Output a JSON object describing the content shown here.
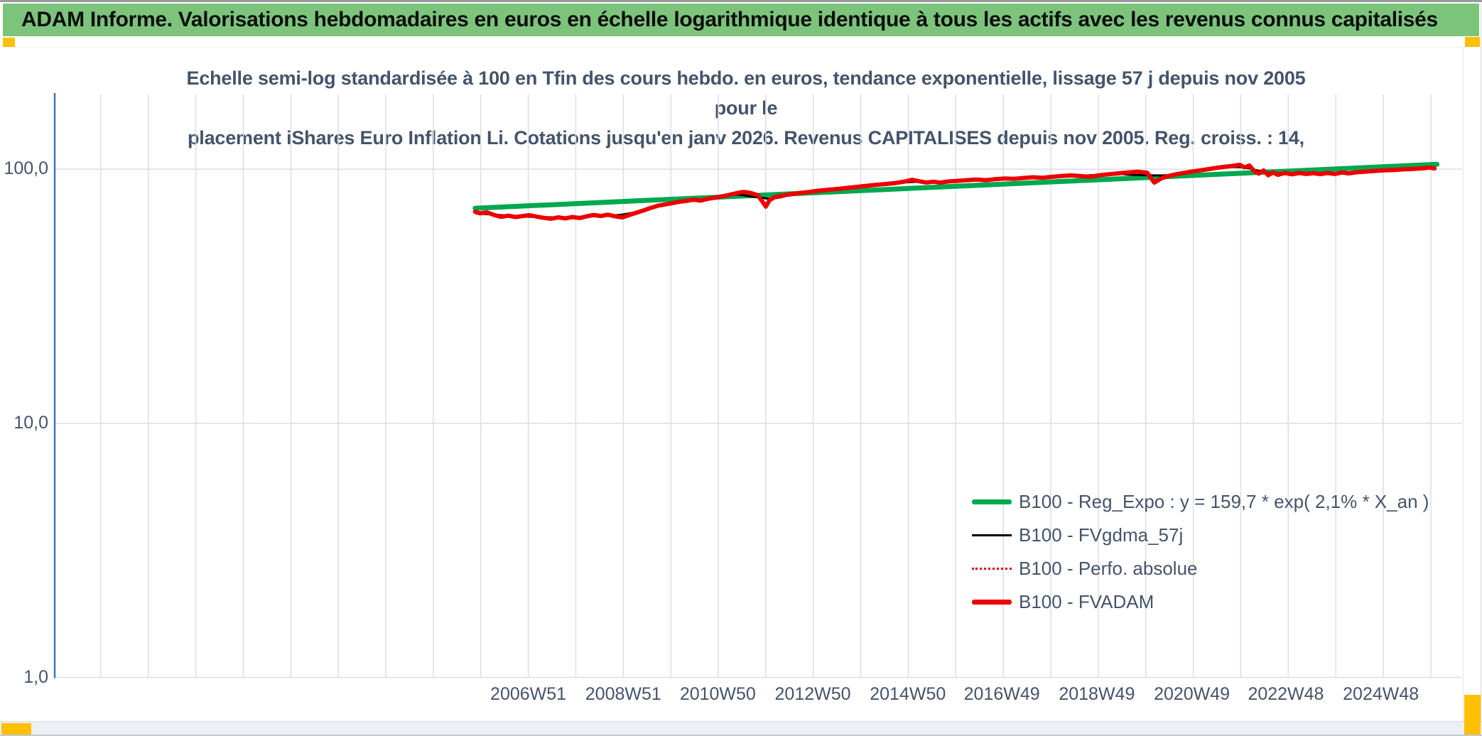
{
  "header": {
    "title": "ADAM Informe. Valorisations hebdomadaires en euros en échelle logarithmique identique à tous les actifs avec les revenus connus capitalisés"
  },
  "chart": {
    "title_line1": "Echelle semi-log standardisée à 100 en Tfin des cours hebdo. en euros, tendance exponentielle, lissage 57 j depuis nov 2005 pour le",
    "title_line2": "placement iShares Euro Inflation Li. Cotations jusqu'en janv 2026. Revenus CAPITALISES depuis nov 2005. Reg. croiss. : 14,"
  },
  "colors": {
    "header_green": "#7CC47C",
    "accent_orange": "#FFC003",
    "title_navy": "#44546A",
    "reg_expo_green": "#00A84F",
    "fvadam_red": "#EC0000",
    "fvgdma_black": "#000000",
    "axis_blue": "#4472C4",
    "gridline": "#DADEE4"
  },
  "chart_data": {
    "type": "line",
    "title": "Echelle semi-log standardisée à 100 en Tfin des cours hebdo. en euros, tendance exponentielle, lissage 57 j depuis nov 2005 pour le placement iShares Euro Inflation Li. Cotations jusqu'en janv 2026. Revenus CAPITALISES depuis nov 2005. Reg. croiss. : 14,",
    "x_axis": {
      "min_year": 1997.0,
      "max_year": 2026.63,
      "grid_start_year": 1997.97,
      "grid_step": 1,
      "grid_count": 29,
      "ticks": [
        {
          "label": "2006W51",
          "year": 2006.97
        },
        {
          "label": "2008W51",
          "year": 2008.97
        },
        {
          "label": "2010W50",
          "year": 2010.96
        },
        {
          "label": "2012W50",
          "year": 2012.96
        },
        {
          "label": "2014W50",
          "year": 2014.96
        },
        {
          "label": "2016W49",
          "year": 2016.94
        },
        {
          "label": "2018W49",
          "year": 2018.94
        },
        {
          "label": "2020W49",
          "year": 2020.94
        },
        {
          "label": "2022W48",
          "year": 2022.92
        },
        {
          "label": "2024W48",
          "year": 2024.92
        }
      ]
    },
    "y_axis": {
      "scale": "log",
      "min": 1,
      "max": 196.7,
      "ticks": [
        {
          "value": 100,
          "label": "100,0"
        },
        {
          "value": 10,
          "label": "10,0"
        },
        {
          "value": 1,
          "label": "1,0"
        }
      ]
    },
    "legend_position": "inside-bottom-right",
    "series": [
      {
        "name": "B100 - Reg_Expo : y = 159,7 * exp( 2,1% *  X_an )",
        "color": "#00A84F",
        "style": "solid-thick",
        "points": [
          [
            2005.85,
            70.2
          ],
          [
            2026.1,
            104.5
          ]
        ]
      },
      {
        "name": "B100 - FVgdma_57j",
        "color": "#000000",
        "style": "solid-thin",
        "smooth_of": "B100 - FVADAM",
        "smooth_window": 7
      },
      {
        "name": "B100 - Perfo. absolue",
        "color": "#E00000",
        "style": "dotted",
        "points_same_as": "B100 - FVADAM"
      },
      {
        "name": "B100 - FVADAM",
        "color": "#EC0000",
        "style": "solid-thick",
        "points": [
          [
            2005.85,
            68.0
          ],
          [
            2005.95,
            67.0
          ],
          [
            2006.1,
            67.6
          ],
          [
            2006.25,
            66.0
          ],
          [
            2006.4,
            64.9
          ],
          [
            2006.55,
            65.6
          ],
          [
            2006.7,
            64.8
          ],
          [
            2006.85,
            65.4
          ],
          [
            2007.0,
            65.9
          ],
          [
            2007.15,
            65.0
          ],
          [
            2007.3,
            64.3
          ],
          [
            2007.45,
            63.8
          ],
          [
            2007.6,
            64.6
          ],
          [
            2007.75,
            64.0
          ],
          [
            2007.9,
            64.8
          ],
          [
            2008.05,
            64.2
          ],
          [
            2008.2,
            65.2
          ],
          [
            2008.35,
            66.0
          ],
          [
            2008.5,
            65.4
          ],
          [
            2008.65,
            66.2
          ],
          [
            2008.8,
            65.2
          ],
          [
            2008.95,
            64.6
          ],
          [
            2009.1,
            66.0
          ],
          [
            2009.25,
            67.4
          ],
          [
            2009.4,
            68.8
          ],
          [
            2009.55,
            70.4
          ],
          [
            2009.7,
            71.8
          ],
          [
            2009.85,
            72.6
          ],
          [
            2010.0,
            73.4
          ],
          [
            2010.15,
            74.4
          ],
          [
            2010.3,
            75.0
          ],
          [
            2010.45,
            75.8
          ],
          [
            2010.6,
            75.2
          ],
          [
            2010.75,
            76.4
          ],
          [
            2010.9,
            77.2
          ],
          [
            2011.05,
            78.2
          ],
          [
            2011.2,
            79.2
          ],
          [
            2011.35,
            80.4
          ],
          [
            2011.5,
            81.4
          ],
          [
            2011.65,
            80.6
          ],
          [
            2011.8,
            79.0
          ],
          [
            2011.9,
            74.5
          ],
          [
            2011.97,
            71.2
          ],
          [
            2012.05,
            75.5
          ],
          [
            2012.15,
            77.5
          ],
          [
            2012.3,
            78.6
          ],
          [
            2012.45,
            79.4
          ],
          [
            2012.6,
            80.2
          ],
          [
            2012.75,
            80.8
          ],
          [
            2012.9,
            81.4
          ],
          [
            2013.1,
            82.4
          ],
          [
            2013.3,
            83.0
          ],
          [
            2013.5,
            83.6
          ],
          [
            2013.7,
            84.4
          ],
          [
            2013.9,
            85.2
          ],
          [
            2014.1,
            86.0
          ],
          [
            2014.3,
            86.8
          ],
          [
            2014.5,
            87.4
          ],
          [
            2014.7,
            88.2
          ],
          [
            2014.9,
            89.4
          ],
          [
            2015.05,
            90.8
          ],
          [
            2015.2,
            89.6
          ],
          [
            2015.35,
            88.6
          ],
          [
            2015.5,
            89.2
          ],
          [
            2015.65,
            88.5
          ],
          [
            2015.8,
            89.4
          ],
          [
            2016.0,
            89.9
          ],
          [
            2016.2,
            90.5
          ],
          [
            2016.4,
            91.0
          ],
          [
            2016.6,
            90.5
          ],
          [
            2016.8,
            91.3
          ],
          [
            2017.0,
            91.9
          ],
          [
            2017.2,
            91.6
          ],
          [
            2017.4,
            92.3
          ],
          [
            2017.6,
            92.9
          ],
          [
            2017.8,
            92.5
          ],
          [
            2018.0,
            93.3
          ],
          [
            2018.2,
            94.0
          ],
          [
            2018.4,
            94.5
          ],
          [
            2018.6,
            93.9
          ],
          [
            2018.8,
            93.3
          ],
          [
            2019.0,
            94.7
          ],
          [
            2019.2,
            95.5
          ],
          [
            2019.4,
            96.3
          ],
          [
            2019.6,
            97.1
          ],
          [
            2019.8,
            97.7
          ],
          [
            2020.0,
            96.8
          ],
          [
            2020.15,
            88.5
          ],
          [
            2020.3,
            92.0
          ],
          [
            2020.45,
            94.0
          ],
          [
            2020.6,
            95.4
          ],
          [
            2020.8,
            96.8
          ],
          [
            2021.0,
            98.2
          ],
          [
            2021.2,
            99.4
          ],
          [
            2021.4,
            100.8
          ],
          [
            2021.6,
            102.0
          ],
          [
            2021.8,
            103.0
          ],
          [
            2021.95,
            104.0
          ],
          [
            2022.05,
            101.6
          ],
          [
            2022.15,
            103.4
          ],
          [
            2022.25,
            98.4
          ],
          [
            2022.35,
            96.0
          ],
          [
            2022.45,
            98.8
          ],
          [
            2022.55,
            94.6
          ],
          [
            2022.65,
            97.0
          ],
          [
            2022.75,
            95.0
          ],
          [
            2022.9,
            96.6
          ],
          [
            2023.05,
            95.4
          ],
          [
            2023.2,
            96.6
          ],
          [
            2023.35,
            95.7
          ],
          [
            2023.5,
            96.4
          ],
          [
            2023.65,
            95.6
          ],
          [
            2023.8,
            96.6
          ],
          [
            2023.95,
            95.7
          ],
          [
            2024.1,
            97.0
          ],
          [
            2024.25,
            96.2
          ],
          [
            2024.4,
            97.2
          ],
          [
            2024.55,
            97.7
          ],
          [
            2024.7,
            98.1
          ],
          [
            2024.85,
            98.5
          ],
          [
            2025.0,
            98.9
          ],
          [
            2025.2,
            99.3
          ],
          [
            2025.4,
            99.8
          ],
          [
            2025.6,
            100.2
          ],
          [
            2025.8,
            100.7
          ],
          [
            2025.95,
            101.4
          ],
          [
            2026.05,
            100.6
          ]
        ]
      }
    ]
  }
}
